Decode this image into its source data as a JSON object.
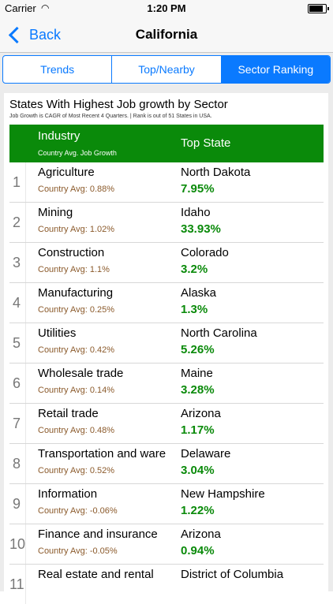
{
  "status_bar": {
    "carrier": "Carrier",
    "time": "1:20 PM"
  },
  "nav": {
    "back_label": "Back",
    "title": "California"
  },
  "tabs": [
    {
      "label": "Trends",
      "active": false
    },
    {
      "label": "Top/Nearby",
      "active": false
    },
    {
      "label": "Sector Ranking",
      "active": true
    }
  ],
  "panel": {
    "title": "States With Highest Job growth by Sector",
    "subtitle": "Job Growth is CAGR of Most Recent 4 Quarters. | Rank is out of 51 States in USA."
  },
  "table": {
    "header": {
      "industry": "Industry",
      "avg": "Country Avg. Job Growth",
      "state": "Top State"
    },
    "rows": [
      {
        "rank": "1",
        "industry": "Agriculture",
        "avg": "Country Avg: 0.88%",
        "state": "North Dakota",
        "growth": "7.95%"
      },
      {
        "rank": "2",
        "industry": "Mining",
        "avg": "Country Avg: 1.02%",
        "state": "Idaho",
        "growth": "33.93%"
      },
      {
        "rank": "3",
        "industry": "Construction",
        "avg": "Country Avg: 1.1%",
        "state": "Colorado",
        "growth": "3.2%"
      },
      {
        "rank": "4",
        "industry": "Manufacturing",
        "avg": "Country Avg: 0.25%",
        "state": "Alaska",
        "growth": "1.3%"
      },
      {
        "rank": "5",
        "industry": "Utilities",
        "avg": "Country Avg: 0.42%",
        "state": "North Carolina",
        "growth": "5.26%"
      },
      {
        "rank": "6",
        "industry": "Wholesale trade",
        "avg": "Country Avg: 0.14%",
        "state": "Maine",
        "growth": "3.28%"
      },
      {
        "rank": "7",
        "industry": "Retail trade",
        "avg": "Country Avg: 0.48%",
        "state": "Arizona",
        "growth": "1.17%"
      },
      {
        "rank": "8",
        "industry": "Transportation and ware",
        "avg": "Country Avg: 0.52%",
        "state": "Delaware",
        "growth": "3.04%"
      },
      {
        "rank": "9",
        "industry": "Information",
        "avg": "Country Avg: -0.06%",
        "state": "New Hampshire",
        "growth": "1.22%"
      },
      {
        "rank": "10",
        "industry": "Finance and insurance",
        "avg": "Country Avg: -0.05%",
        "state": "Arizona",
        "growth": "0.94%"
      },
      {
        "rank": "11",
        "industry": "Real estate and rental",
        "avg": "",
        "state": "District of Columbia",
        "growth": ""
      }
    ]
  }
}
